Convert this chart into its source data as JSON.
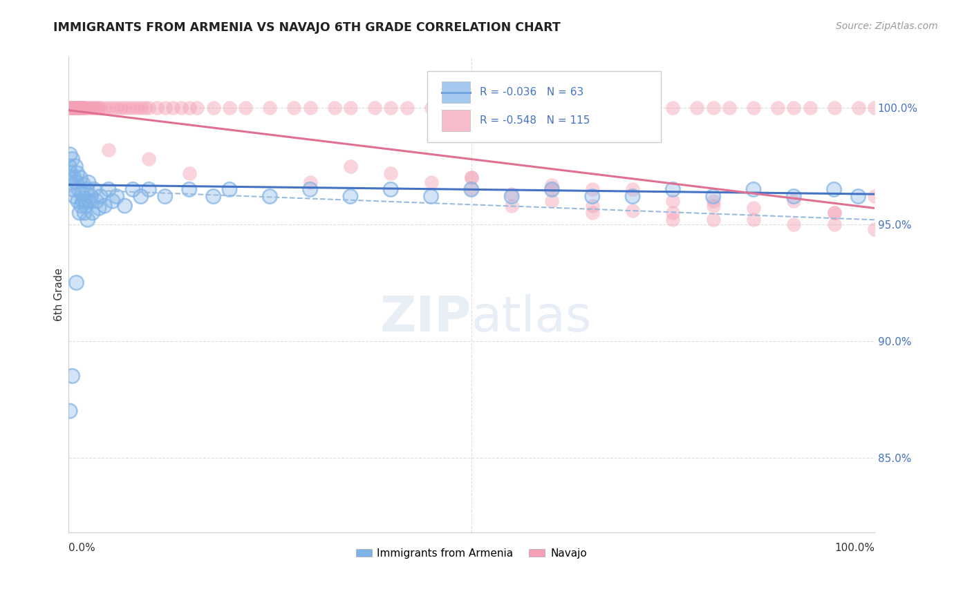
{
  "title": "IMMIGRANTS FROM ARMENIA VS NAVAJO 6TH GRADE CORRELATION CHART",
  "source": "Source: ZipAtlas.com",
  "ylabel": "6th Grade",
  "legend_blue_label": "Immigrants from Armenia",
  "legend_pink_label": "Navajo",
  "R_blue": "-0.036",
  "N_blue": "63",
  "R_pink": "-0.548",
  "N_pink": "115",
  "xlim": [
    0.0,
    1.0
  ],
  "ylim": [
    0.818,
    1.022
  ],
  "ytick_vals": [
    0.85,
    0.9,
    0.95,
    1.0
  ],
  "ytick_labels": [
    "85.0%",
    "90.0%",
    "95.0%",
    "100.0%"
  ],
  "background_color": "#ffffff",
  "blue_color": "#7fb3e8",
  "pink_color": "#f5a0b5",
  "blue_line_color": "#4472c4",
  "pink_line_color": "#e07090",
  "dashed_line_color": "#99bbdd",
  "grid_color": "#dddddd",
  "watermark_color": "#e8eef5",
  "blue_scatter_x": [
    0.001,
    0.002,
    0.003,
    0.004,
    0.005,
    0.006,
    0.007,
    0.008,
    0.009,
    0.01,
    0.011,
    0.012,
    0.013,
    0.014,
    0.015,
    0.016,
    0.017,
    0.018,
    0.019,
    0.02,
    0.021,
    0.022,
    0.023,
    0.024,
    0.025,
    0.026,
    0.028,
    0.03,
    0.032,
    0.035,
    0.038,
    0.04,
    0.045,
    0.05,
    0.055,
    0.06,
    0.07,
    0.08,
    0.09,
    0.1,
    0.12,
    0.15,
    0.18,
    0.2,
    0.25,
    0.3,
    0.35,
    0.4,
    0.45,
    0.5,
    0.55,
    0.6,
    0.65,
    0.7,
    0.75,
    0.8,
    0.85,
    0.9,
    0.95,
    0.98,
    0.002,
    0.005,
    0.01
  ],
  "blue_scatter_y": [
    0.975,
    0.98,
    0.972,
    0.968,
    0.978,
    0.965,
    0.97,
    0.962,
    0.975,
    0.968,
    0.972,
    0.96,
    0.965,
    0.955,
    0.97,
    0.958,
    0.963,
    0.96,
    0.967,
    0.955,
    0.96,
    0.958,
    0.965,
    0.952,
    0.968,
    0.96,
    0.962,
    0.955,
    0.965,
    0.96,
    0.957,
    0.962,
    0.958,
    0.965,
    0.96,
    0.962,
    0.958,
    0.965,
    0.962,
    0.965,
    0.962,
    0.965,
    0.962,
    0.965,
    0.962,
    0.965,
    0.962,
    0.965,
    0.962,
    0.965,
    0.962,
    0.965,
    0.962,
    0.962,
    0.965,
    0.962,
    0.965,
    0.962,
    0.965,
    0.962,
    0.87,
    0.885,
    0.925
  ],
  "pink_scatter_x": [
    0.001,
    0.002,
    0.003,
    0.004,
    0.005,
    0.006,
    0.007,
    0.008,
    0.009,
    0.01,
    0.011,
    0.012,
    0.013,
    0.014,
    0.015,
    0.016,
    0.017,
    0.018,
    0.019,
    0.02,
    0.022,
    0.025,
    0.028,
    0.03,
    0.032,
    0.035,
    0.038,
    0.04,
    0.045,
    0.05,
    0.055,
    0.06,
    0.065,
    0.07,
    0.075,
    0.08,
    0.085,
    0.09,
    0.095,
    0.1,
    0.11,
    0.12,
    0.13,
    0.14,
    0.15,
    0.16,
    0.18,
    0.2,
    0.22,
    0.25,
    0.28,
    0.3,
    0.33,
    0.35,
    0.38,
    0.4,
    0.42,
    0.45,
    0.48,
    0.5,
    0.52,
    0.55,
    0.58,
    0.6,
    0.62,
    0.65,
    0.68,
    0.7,
    0.72,
    0.75,
    0.78,
    0.8,
    0.82,
    0.85,
    0.88,
    0.9,
    0.92,
    0.95,
    0.98,
    1.0,
    0.05,
    0.1,
    0.15,
    0.3,
    0.5,
    0.6,
    0.7,
    0.8,
    0.9,
    1.0,
    0.35,
    0.5,
    0.65,
    0.8,
    0.95,
    0.4,
    0.6,
    0.75,
    0.85,
    0.95,
    0.45,
    0.55,
    0.65,
    0.75,
    0.85,
    0.95,
    0.5,
    0.6,
    0.7,
    0.8,
    0.9,
    1.0,
    0.55,
    0.65,
    0.75
  ],
  "pink_scatter_y": [
    1.0,
    1.0,
    1.0,
    1.0,
    1.0,
    1.0,
    1.0,
    1.0,
    1.0,
    1.0,
    1.0,
    1.0,
    1.0,
    1.0,
    1.0,
    1.0,
    1.0,
    1.0,
    1.0,
    1.0,
    1.0,
    1.0,
    1.0,
    1.0,
    1.0,
    1.0,
    1.0,
    1.0,
    1.0,
    1.0,
    1.0,
    1.0,
    1.0,
    1.0,
    1.0,
    1.0,
    1.0,
    1.0,
    1.0,
    1.0,
    1.0,
    1.0,
    1.0,
    1.0,
    1.0,
    1.0,
    1.0,
    1.0,
    1.0,
    1.0,
    1.0,
    1.0,
    1.0,
    1.0,
    1.0,
    1.0,
    1.0,
    1.0,
    1.0,
    1.0,
    1.0,
    1.0,
    1.0,
    1.0,
    1.0,
    1.0,
    1.0,
    1.0,
    1.0,
    1.0,
    1.0,
    1.0,
    1.0,
    1.0,
    1.0,
    1.0,
    1.0,
    1.0,
    1.0,
    1.0,
    0.982,
    0.978,
    0.972,
    0.968,
    0.97,
    0.965,
    0.965,
    0.96,
    0.96,
    0.962,
    0.975,
    0.97,
    0.965,
    0.958,
    0.955,
    0.972,
    0.967,
    0.96,
    0.957,
    0.955,
    0.968,
    0.963,
    0.958,
    0.955,
    0.952,
    0.95,
    0.965,
    0.96,
    0.956,
    0.952,
    0.95,
    0.948,
    0.958,
    0.955,
    0.952
  ]
}
